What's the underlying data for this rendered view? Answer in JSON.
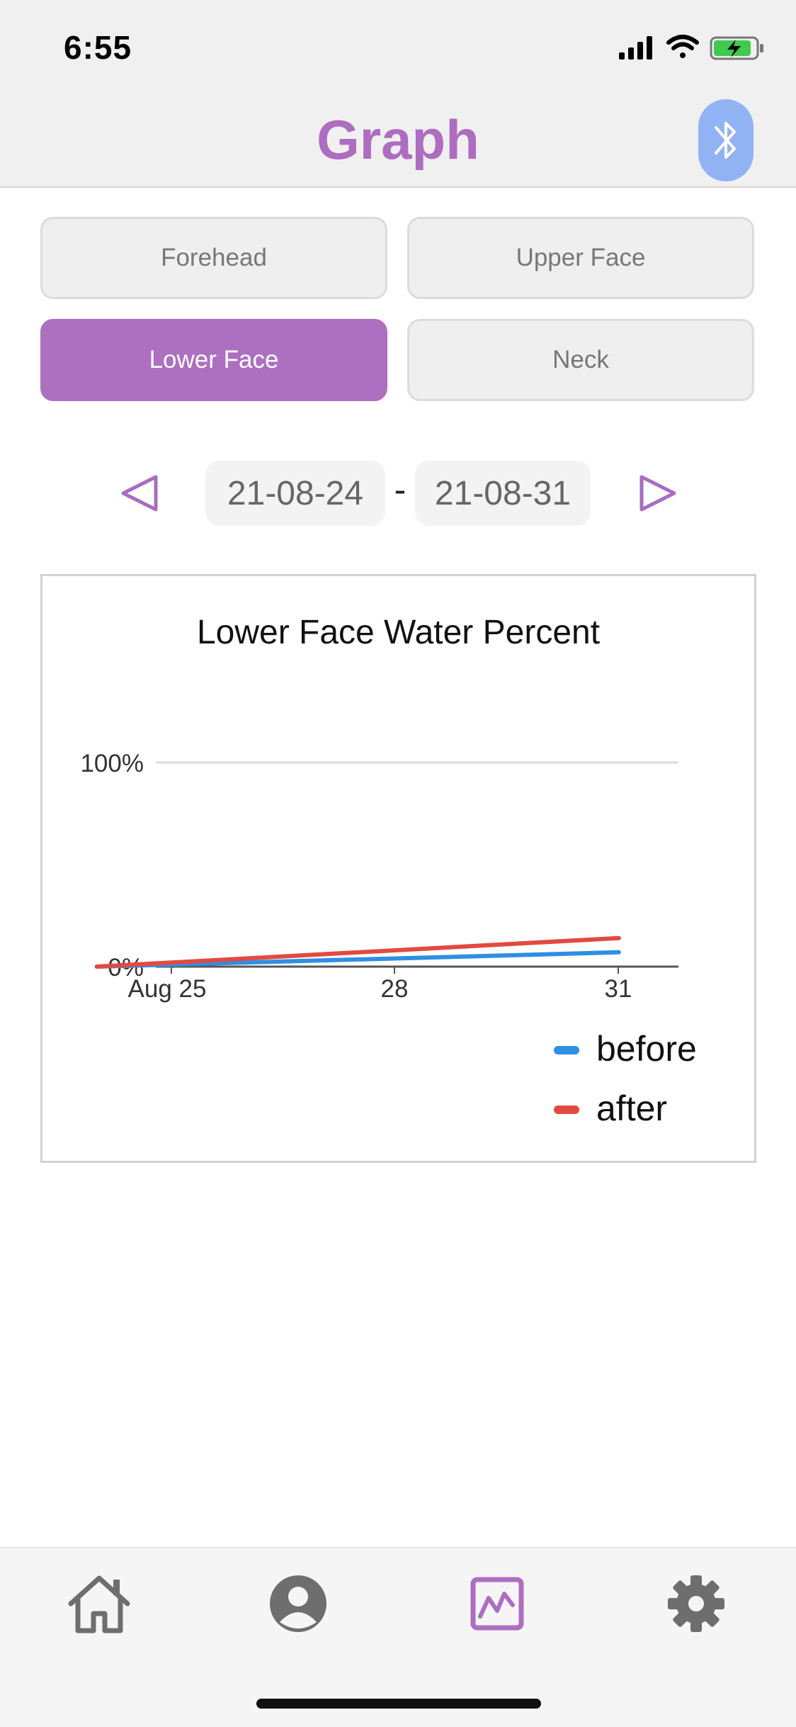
{
  "status_bar": {
    "time": "6:55"
  },
  "header": {
    "title": "Graph",
    "bluetooth_icon": "bluetooth-icon"
  },
  "area_buttons": [
    {
      "label": "Forehead",
      "selected": false
    },
    {
      "label": "Upper Face",
      "selected": false
    },
    {
      "label": "Lower Face",
      "selected": true
    },
    {
      "label": "Neck",
      "selected": false
    }
  ],
  "date_range": {
    "start": "21-08-24",
    "separator": "-",
    "end": "21-08-31",
    "prev_icon": "triangle-left-icon",
    "next_icon": "triangle-right-icon"
  },
  "chart_data": {
    "type": "line",
    "title": "Lower Face Water Percent",
    "x_ticks": [
      "Aug 25",
      "28",
      "31"
    ],
    "y_ticks": [
      "0%",
      "100%"
    ],
    "ylim": [
      0,
      100
    ],
    "grid": true,
    "legend_position": "bottom-right",
    "series": [
      {
        "name": "before",
        "color": "#2e8fe3",
        "x": [
          "2021-08-24",
          "2021-08-31"
        ],
        "y": [
          0,
          7
        ]
      },
      {
        "name": "after",
        "color": "#e24a40",
        "x": [
          "2021-08-24",
          "2021-08-31"
        ],
        "y": [
          0,
          14
        ]
      }
    ]
  },
  "tabbar": {
    "items": [
      {
        "name": "home",
        "icon": "home-icon",
        "active": false
      },
      {
        "name": "profile",
        "icon": "user-icon",
        "active": false
      },
      {
        "name": "graph",
        "icon": "chart-icon",
        "active": true
      },
      {
        "name": "settings",
        "icon": "gear-icon",
        "active": false
      }
    ]
  },
  "colors": {
    "accent": "#ad6dc0",
    "bluetooth": "#92b3f3",
    "inactive_icon": "#6e6e6e"
  }
}
